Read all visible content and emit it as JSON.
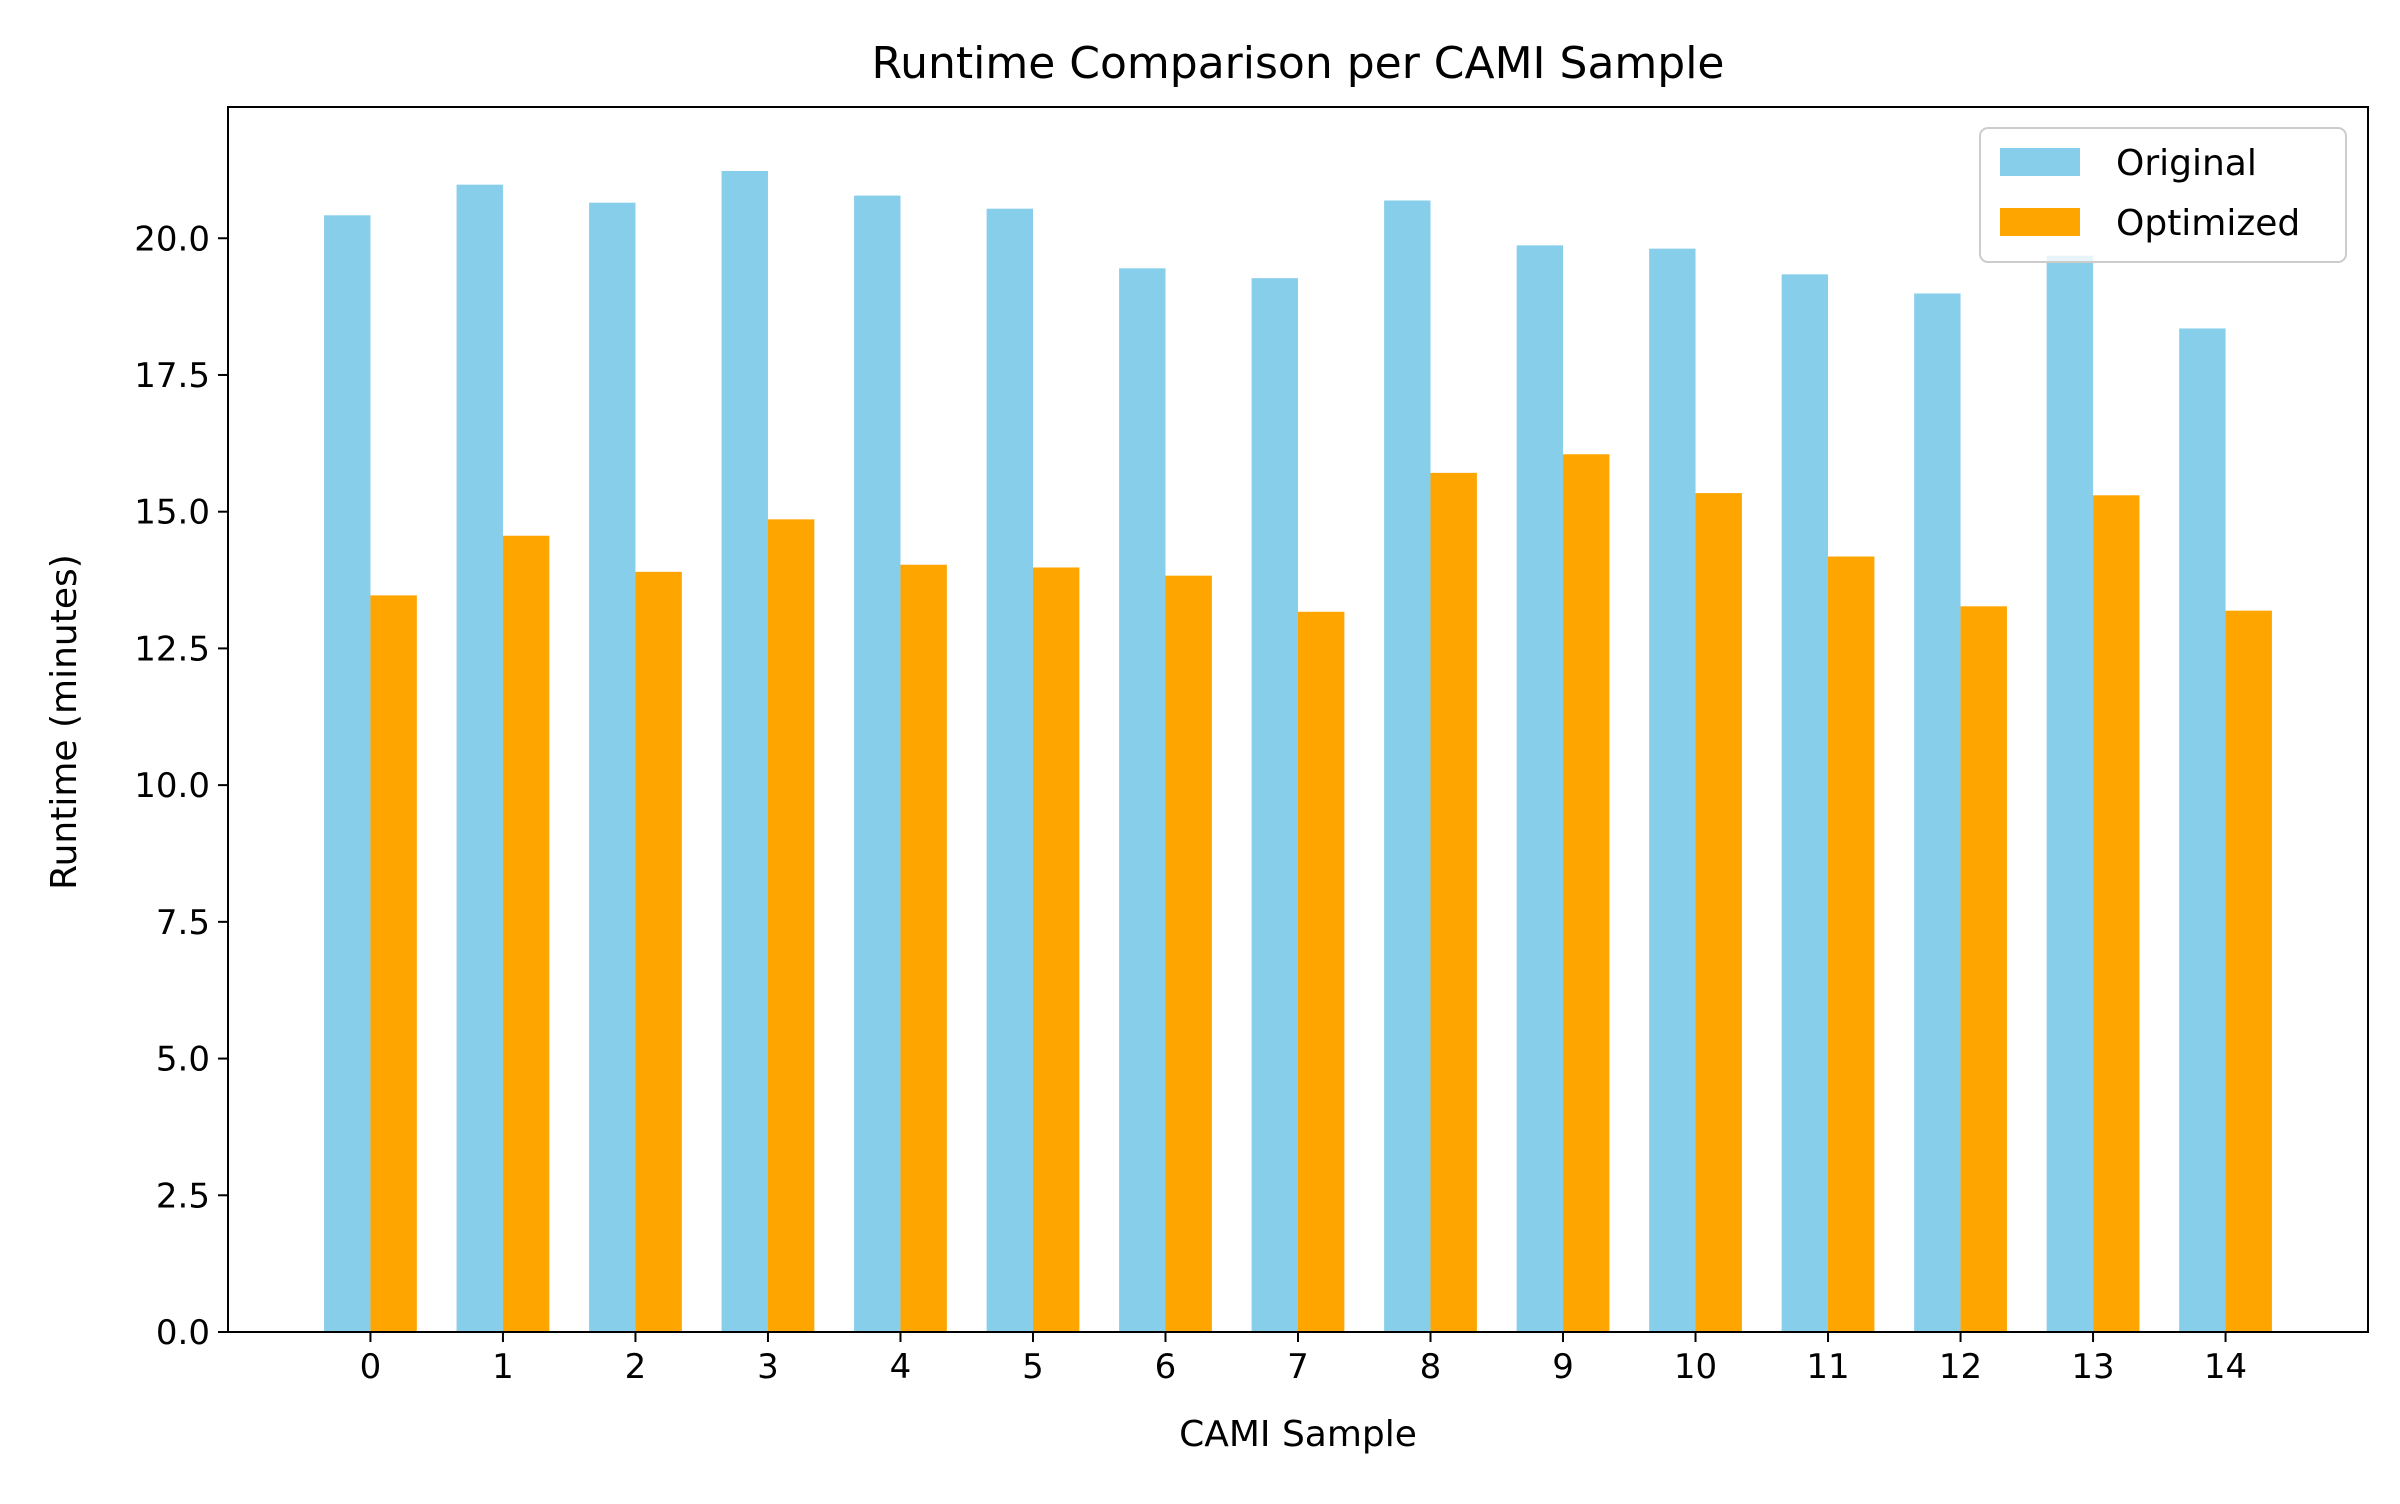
{
  "chart_data": {
    "type": "bar",
    "title": "Runtime Comparison per CAMI Sample",
    "xlabel": "CAMI Sample",
    "ylabel": "Runtime (minutes)",
    "categories": [
      "0",
      "1",
      "2",
      "3",
      "4",
      "5",
      "6",
      "7",
      "8",
      "9",
      "10",
      "11",
      "12",
      "13",
      "14"
    ],
    "series": [
      {
        "name": "Original",
        "color": "#87CEEB",
        "values": [
          20.42,
          20.98,
          20.65,
          21.23,
          20.78,
          20.54,
          19.45,
          19.27,
          20.69,
          19.87,
          19.81,
          19.34,
          18.99,
          19.68,
          18.35
        ]
      },
      {
        "name": "Optimized",
        "color": "#FFA500",
        "values": [
          13.47,
          14.56,
          13.9,
          14.86,
          14.03,
          13.98,
          13.83,
          13.17,
          15.71,
          16.05,
          15.34,
          14.18,
          13.27,
          15.3,
          13.19
        ]
      }
    ],
    "ylim": [
      0,
      22.4
    ],
    "yticks": [
      "0.0",
      "2.5",
      "5.0",
      "7.5",
      "10.0",
      "12.5",
      "15.0",
      "17.5",
      "20.0"
    ],
    "grid": false,
    "legend_position": "top-right"
  }
}
